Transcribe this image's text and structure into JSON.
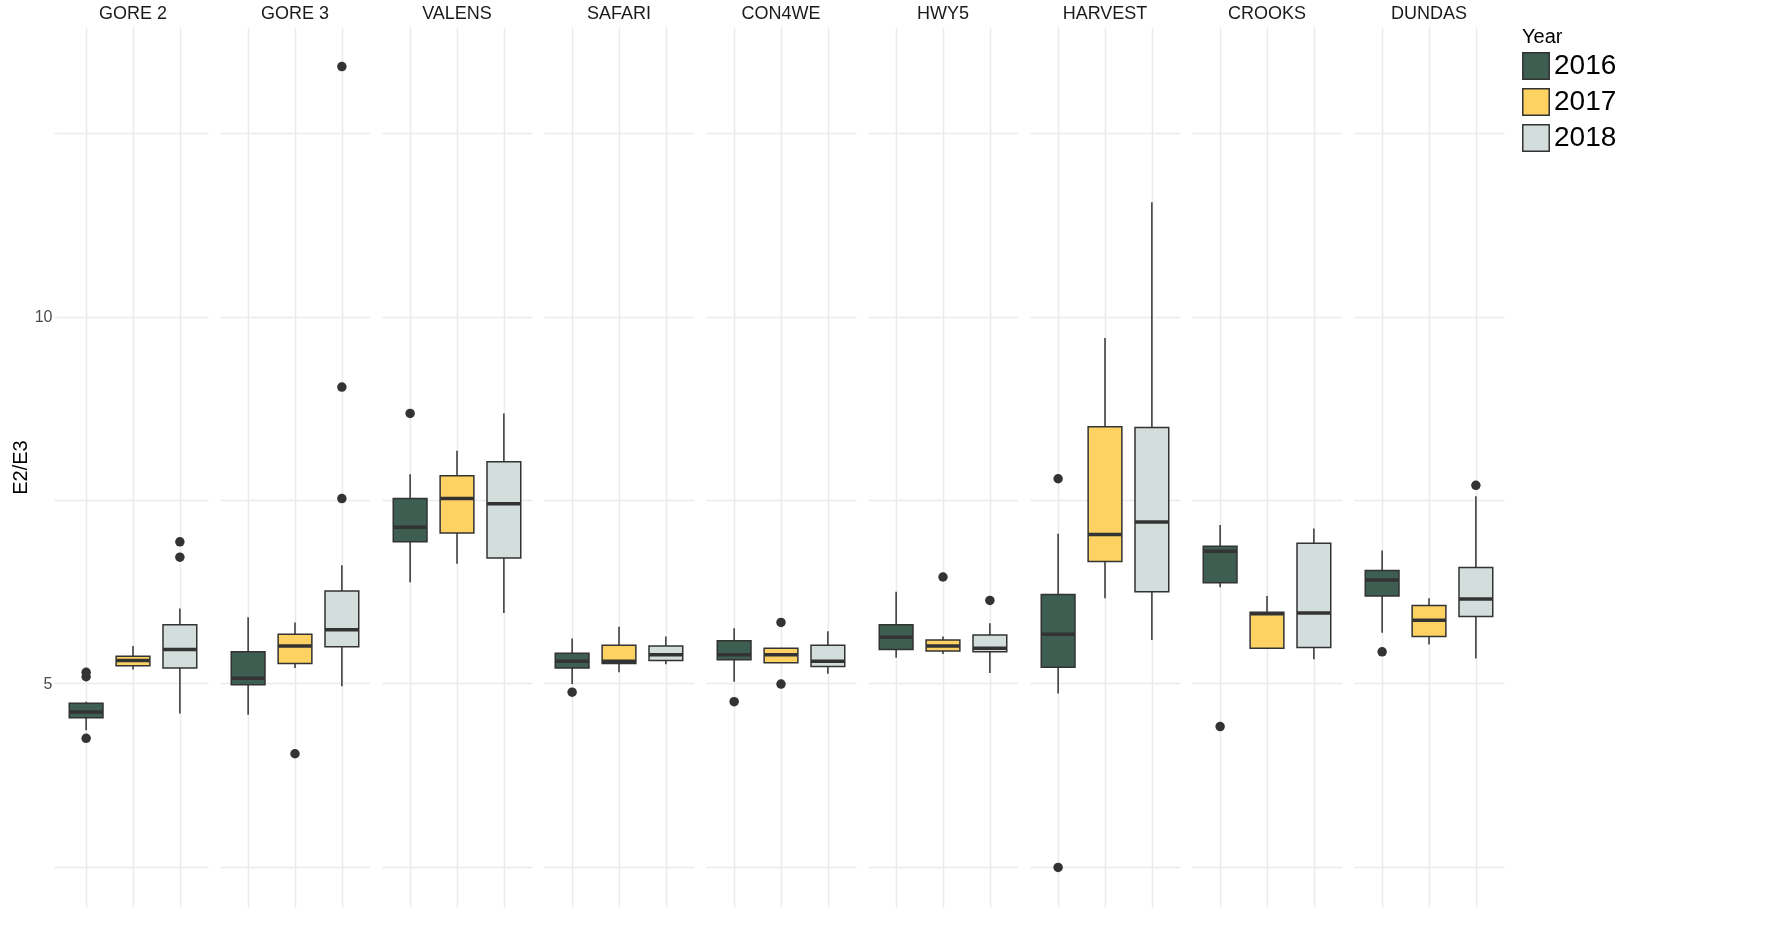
{
  "chart_data": {
    "type": "box",
    "ylabel": "E2/E3",
    "legend_title": "Year",
    "legend": "right",
    "grid": true,
    "categories": [
      "GORE 2",
      "GORE 3",
      "VALENS",
      "SAFARI",
      "CON4WE",
      "HWY5",
      "HARVEST",
      "CROOKS",
      "DUNDAS"
    ],
    "ylim": [
      1.95,
      13.95
    ],
    "yticks": [
      {
        "value": 2.5,
        "label": null
      },
      5,
      {
        "value": 7.5,
        "label": null
      },
      10,
      {
        "value": 12.5,
        "label": null
      }
    ],
    "series": [
      {
        "name": "2016",
        "color": "#3d5e50",
        "boxes": [
          {
            "low": 4.36,
            "q1": 4.53,
            "median": 4.61,
            "q3": 4.73,
            "high": 4.75,
            "outliers": [
              5.15,
              5.09,
              4.25
            ]
          },
          {
            "low": 4.57,
            "q1": 4.98,
            "median": 5.07,
            "q3": 5.43,
            "high": 5.9
          },
          {
            "low": 6.38,
            "q1": 6.93,
            "median": 7.13,
            "q3": 7.52,
            "high": 7.85,
            "outliers": [
              8.68
            ]
          },
          {
            "low": 4.99,
            "q1": 5.21,
            "median": 5.3,
            "q3": 5.41,
            "high": 5.61,
            "outliers": [
              4.88
            ]
          },
          {
            "low": 5.02,
            "q1": 5.32,
            "median": 5.39,
            "q3": 5.58,
            "high": 5.75,
            "outliers": [
              4.75
            ]
          },
          {
            "low": 5.35,
            "q1": 5.46,
            "median": 5.63,
            "q3": 5.8,
            "high": 6.25
          },
          {
            "low": 4.86,
            "q1": 5.22,
            "median": 5.67,
            "q3": 6.21,
            "high": 7.04,
            "outliers": [
              7.79,
              2.49
            ]
          },
          {
            "low": 6.31,
            "q1": 6.37,
            "median": 6.8,
            "q3": 6.87,
            "high": 7.16,
            "outliers": [
              4.41
            ]
          },
          {
            "low": 5.69,
            "q1": 6.19,
            "median": 6.41,
            "q3": 6.54,
            "high": 6.81,
            "outliers": [
              5.43
            ]
          }
        ]
      },
      {
        "name": "2017",
        "color": "#fdd262",
        "boxes": [
          {
            "low": 5.19,
            "q1": 5.24,
            "median": 5.31,
            "q3": 5.37,
            "high": 5.51
          },
          {
            "low": 5.21,
            "q1": 5.27,
            "median": 5.51,
            "q3": 5.67,
            "high": 5.83,
            "outliers": [
              4.04
            ]
          },
          {
            "low": 6.63,
            "q1": 7.05,
            "median": 7.52,
            "q3": 7.83,
            "high": 8.17
          },
          {
            "low": 5.15,
            "q1": 5.27,
            "median": 5.3,
            "q3": 5.52,
            "high": 5.77
          },
          {
            "low": 5.28,
            "q1": 5.28,
            "median": 5.39,
            "q3": 5.48,
            "high": 5.48,
            "outliers": [
              5.83,
              4.99
            ]
          },
          {
            "low": 5.4,
            "q1": 5.44,
            "median": 5.51,
            "q3": 5.59,
            "high": 5.64,
            "outliers": [
              6.45
            ]
          },
          {
            "low": 6.16,
            "q1": 6.66,
            "median": 7.03,
            "q3": 8.5,
            "high": 9.71
          },
          {
            "low": 5.47,
            "q1": 5.48,
            "median": 5.95,
            "q3": 5.97,
            "high": 6.19
          },
          {
            "low": 5.53,
            "q1": 5.64,
            "median": 5.86,
            "q3": 6.06,
            "high": 6.16
          }
        ]
      },
      {
        "name": "2018",
        "color": "#d3dddc",
        "boxes": [
          {
            "low": 4.59,
            "q1": 5.21,
            "median": 5.46,
            "q3": 5.8,
            "high": 6.02,
            "outliers": [
              6.93,
              6.72
            ]
          },
          {
            "low": 4.96,
            "q1": 5.5,
            "median": 5.73,
            "q3": 6.26,
            "high": 6.61,
            "outliers": [
              13.41,
              9.04,
              7.52
            ]
          },
          {
            "low": 5.96,
            "q1": 6.71,
            "median": 7.45,
            "q3": 8.02,
            "high": 8.68
          },
          {
            "low": 5.26,
            "q1": 5.31,
            "median": 5.39,
            "q3": 5.51,
            "high": 5.64
          },
          {
            "low": 5.13,
            "q1": 5.23,
            "median": 5.3,
            "q3": 5.52,
            "high": 5.71
          },
          {
            "low": 5.14,
            "q1": 5.43,
            "median": 5.48,
            "q3": 5.66,
            "high": 5.82,
            "outliers": [
              6.13
            ]
          },
          {
            "low": 5.59,
            "q1": 6.25,
            "median": 7.2,
            "q3": 8.49,
            "high": 11.56
          },
          {
            "low": 5.33,
            "q1": 5.49,
            "median": 5.96,
            "q3": 6.91,
            "high": 7.11
          },
          {
            "low": 5.34,
            "q1": 5.91,
            "median": 6.15,
            "q3": 6.58,
            "high": 7.55,
            "outliers": [
              7.7
            ]
          }
        ]
      }
    ]
  }
}
